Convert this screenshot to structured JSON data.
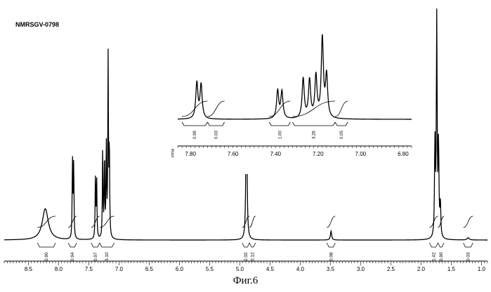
{
  "sample_id": "NMRSGV-0798",
  "caption": "Фиг.6",
  "chart_data": {
    "type": "line",
    "title": "NMRSGV-0798",
    "xlabel": "",
    "ylabel": "",
    "x_reversed": true,
    "main": {
      "xlim": [
        8.9,
        0.9
      ],
      "x_ticks": [
        "8.5",
        "8.0",
        "7.5",
        "7.0",
        "6.5",
        "6.0",
        "5.5",
        "5.0",
        "4.5",
        "4.0",
        "3.5",
        "3.0",
        "2.5",
        "2.0",
        "1.5",
        "1.0"
      ],
      "x_tick_values": [
        8.5,
        8.0,
        7.5,
        7.0,
        6.5,
        6.0,
        5.5,
        5.0,
        4.5,
        4.0,
        3.5,
        3.0,
        2.5,
        2.0,
        1.5,
        1.0
      ],
      "peaks": [
        {
          "ppm": 8.22,
          "height": 0.14,
          "width": 0.06
        },
        {
          "ppm": 7.77,
          "height": 0.36,
          "width": 0.006
        },
        {
          "ppm": 7.75,
          "height": 0.34,
          "width": 0.006
        },
        {
          "ppm": 7.39,
          "height": 0.28,
          "width": 0.006
        },
        {
          "ppm": 7.37,
          "height": 0.27,
          "width": 0.006
        },
        {
          "ppm": 7.27,
          "height": 0.4,
          "width": 0.006
        },
        {
          "ppm": 7.24,
          "height": 0.38,
          "width": 0.006
        },
        {
          "ppm": 7.21,
          "height": 0.42,
          "width": 0.006
        },
        {
          "ppm": 7.18,
          "height": 0.8,
          "width": 0.006
        },
        {
          "ppm": 7.16,
          "height": 0.42,
          "width": 0.006
        },
        {
          "ppm": 4.89,
          "height": 1.0,
          "width": 0.008
        },
        {
          "ppm": 3.49,
          "height": 0.04,
          "width": 0.012
        },
        {
          "ppm": 1.77,
          "height": 0.42,
          "width": 0.008
        },
        {
          "ppm": 1.74,
          "height": 0.98,
          "width": 0.008
        },
        {
          "ppm": 1.71,
          "height": 0.4,
          "width": 0.008
        },
        {
          "ppm": 1.68,
          "height": 0.15,
          "width": 0.008
        },
        {
          "ppm": 1.22,
          "height": 0.01,
          "width": 0.02
        }
      ],
      "integrals": [
        {
          "label": "0.90",
          "from": 8.35,
          "to": 8.05
        },
        {
          "label": "0.94",
          "from": 7.84,
          "to": 7.7
        },
        {
          "label": "0.97",
          "from": 7.46,
          "to": 7.32
        },
        {
          "label": "3.10",
          "from": 7.32,
          "to": 7.08
        },
        {
          "label": "2.02",
          "from": 4.96,
          "to": 4.84
        },
        {
          "label": "0.12",
          "from": 4.84,
          "to": 4.74
        },
        {
          "label": "0.08",
          "from": 3.56,
          "to": 3.42
        },
        {
          "label": "1.42",
          "from": 1.86,
          "to": 1.72
        },
        {
          "label": "0.90",
          "from": 1.72,
          "to": 1.62
        },
        {
          "label": "0.03",
          "from": 1.3,
          "to": 1.14
        }
      ]
    },
    "inset": {
      "xlabel": "PPM",
      "xlim": [
        7.86,
        6.76
      ],
      "x_ticks": [
        "7.80",
        "7.60",
        "7.40",
        "7.20",
        "7.00",
        "6.80"
      ],
      "x_tick_values": [
        7.8,
        7.6,
        7.4,
        7.2,
        7.0,
        6.8
      ],
      "integrals": [
        {
          "label": "0.98",
          "from": 7.84,
          "to": 7.72
        },
        {
          "label": "0.03",
          "from": 7.72,
          "to": 7.64
        },
        {
          "label": "1.00",
          "from": 7.43,
          "to": 7.33
        },
        {
          "label": "3.26",
          "from": 7.32,
          "to": 7.12
        },
        {
          "label": "0.05",
          "from": 7.12,
          "to": 7.06
        }
      ]
    }
  }
}
